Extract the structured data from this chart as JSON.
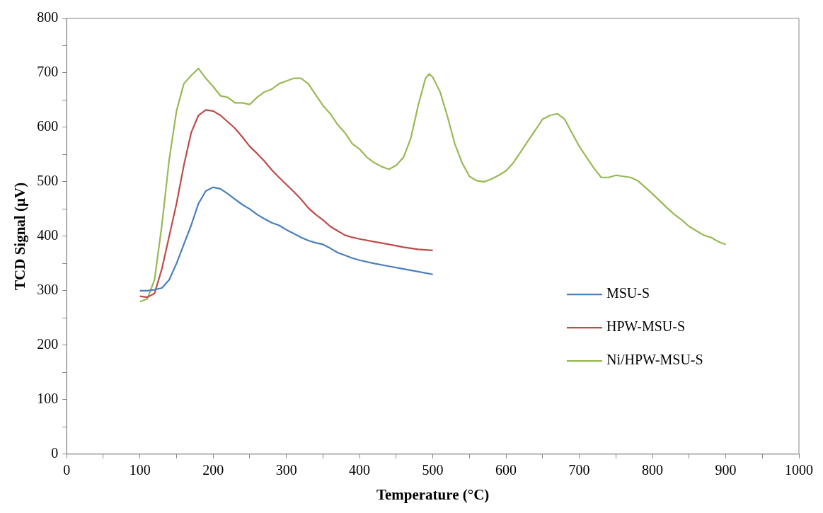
{
  "chart_data": {
    "type": "line",
    "xlabel": "Temperature (°C)",
    "ylabel": "TCD Signal (µV)",
    "xlim": [
      0,
      1000
    ],
    "ylim": [
      0,
      800
    ],
    "xticks": [
      0,
      {
        "value": 50,
        "label": null
      },
      100,
      {
        "value": 150,
        "label": null
      },
      200,
      {
        "value": 250,
        "label": null
      },
      300,
      {
        "value": 350,
        "label": null
      },
      400,
      {
        "value": 450,
        "label": null
      },
      500,
      {
        "value": 550,
        "label": null
      },
      600,
      {
        "value": 650,
        "label": null
      },
      700,
      {
        "value": 750,
        "label": null
      },
      800,
      {
        "value": 850,
        "label": null
      },
      900,
      {
        "value": 950,
        "label": null
      },
      1000
    ],
    "yticks": [
      0,
      {
        "value": 50,
        "label": null
      },
      100,
      {
        "value": 150,
        "label": null
      },
      200,
      {
        "value": 250,
        "label": null
      },
      300,
      {
        "value": 350,
        "label": null
      },
      400,
      {
        "value": 450,
        "label": null
      },
      500,
      {
        "value": 550,
        "label": null
      },
      600,
      {
        "value": 650,
        "label": null
      },
      700,
      {
        "value": 750,
        "label": null
      },
      800
    ],
    "grid": false,
    "legend": "right",
    "marker": "none",
    "line_style": "solid",
    "series": [
      {
        "name": "MSU-S",
        "color": "#4a7ebb",
        "x": [
          100,
          110,
          120,
          130,
          140,
          150,
          160,
          170,
          180,
          190,
          200,
          210,
          220,
          230,
          240,
          250,
          260,
          270,
          280,
          290,
          300,
          310,
          320,
          330,
          340,
          350,
          360,
          370,
          380,
          390,
          400,
          420,
          440,
          460,
          480,
          500
        ],
        "values": [
          300,
          300,
          302,
          305,
          320,
          350,
          385,
          420,
          460,
          483,
          490,
          487,
          478,
          468,
          458,
          450,
          440,
          432,
          425,
          420,
          412,
          405,
          398,
          392,
          388,
          385,
          378,
          370,
          365,
          360,
          356,
          350,
          345,
          340,
          335,
          330
        ]
      },
      {
        "name": "HPW-MSU-S",
        "color": "#be4b48",
        "x": [
          100,
          110,
          120,
          130,
          140,
          150,
          160,
          170,
          180,
          190,
          200,
          210,
          220,
          230,
          240,
          250,
          260,
          270,
          280,
          290,
          300,
          310,
          320,
          330,
          340,
          350,
          360,
          370,
          380,
          390,
          400,
          420,
          440,
          460,
          480,
          500
        ],
        "values": [
          290,
          288,
          295,
          340,
          400,
          460,
          530,
          590,
          622,
          632,
          630,
          622,
          610,
          598,
          582,
          565,
          552,
          538,
          522,
          508,
          495,
          482,
          468,
          452,
          440,
          430,
          418,
          410,
          402,
          398,
          395,
          390,
          385,
          380,
          376,
          374
        ]
      },
      {
        "name": "Ni/HPW-MSU-S",
        "color": "#98b954",
        "x": [
          100,
          110,
          120,
          130,
          140,
          150,
          160,
          170,
          180,
          190,
          200,
          210,
          220,
          230,
          240,
          250,
          260,
          270,
          280,
          290,
          300,
          310,
          320,
          330,
          340,
          350,
          360,
          370,
          380,
          390,
          400,
          410,
          420,
          430,
          440,
          450,
          460,
          470,
          480,
          490,
          495,
          500,
          510,
          520,
          530,
          540,
          550,
          560,
          570,
          580,
          590,
          600,
          610,
          620,
          630,
          640,
          650,
          660,
          670,
          680,
          690,
          700,
          710,
          720,
          730,
          740,
          750,
          760,
          770,
          780,
          790,
          800,
          810,
          820,
          830,
          840,
          850,
          860,
          870,
          880,
          890,
          900
        ],
        "values": [
          280,
          285,
          320,
          420,
          540,
          630,
          680,
          695,
          708,
          690,
          675,
          658,
          655,
          645,
          645,
          642,
          655,
          665,
          670,
          680,
          685,
          690,
          690,
          680,
          660,
          640,
          625,
          605,
          590,
          570,
          560,
          545,
          535,
          528,
          523,
          530,
          545,
          580,
          640,
          690,
          698,
          692,
          665,
          620,
          570,
          535,
          510,
          502,
          500,
          505,
          512,
          520,
          535,
          555,
          575,
          595,
          615,
          622,
          625,
          615,
          590,
          565,
          545,
          525,
          508,
          508,
          512,
          510,
          508,
          502,
          490,
          478,
          465,
          452,
          440,
          430,
          418,
          410,
          402,
          398,
          390,
          385
        ]
      }
    ]
  }
}
